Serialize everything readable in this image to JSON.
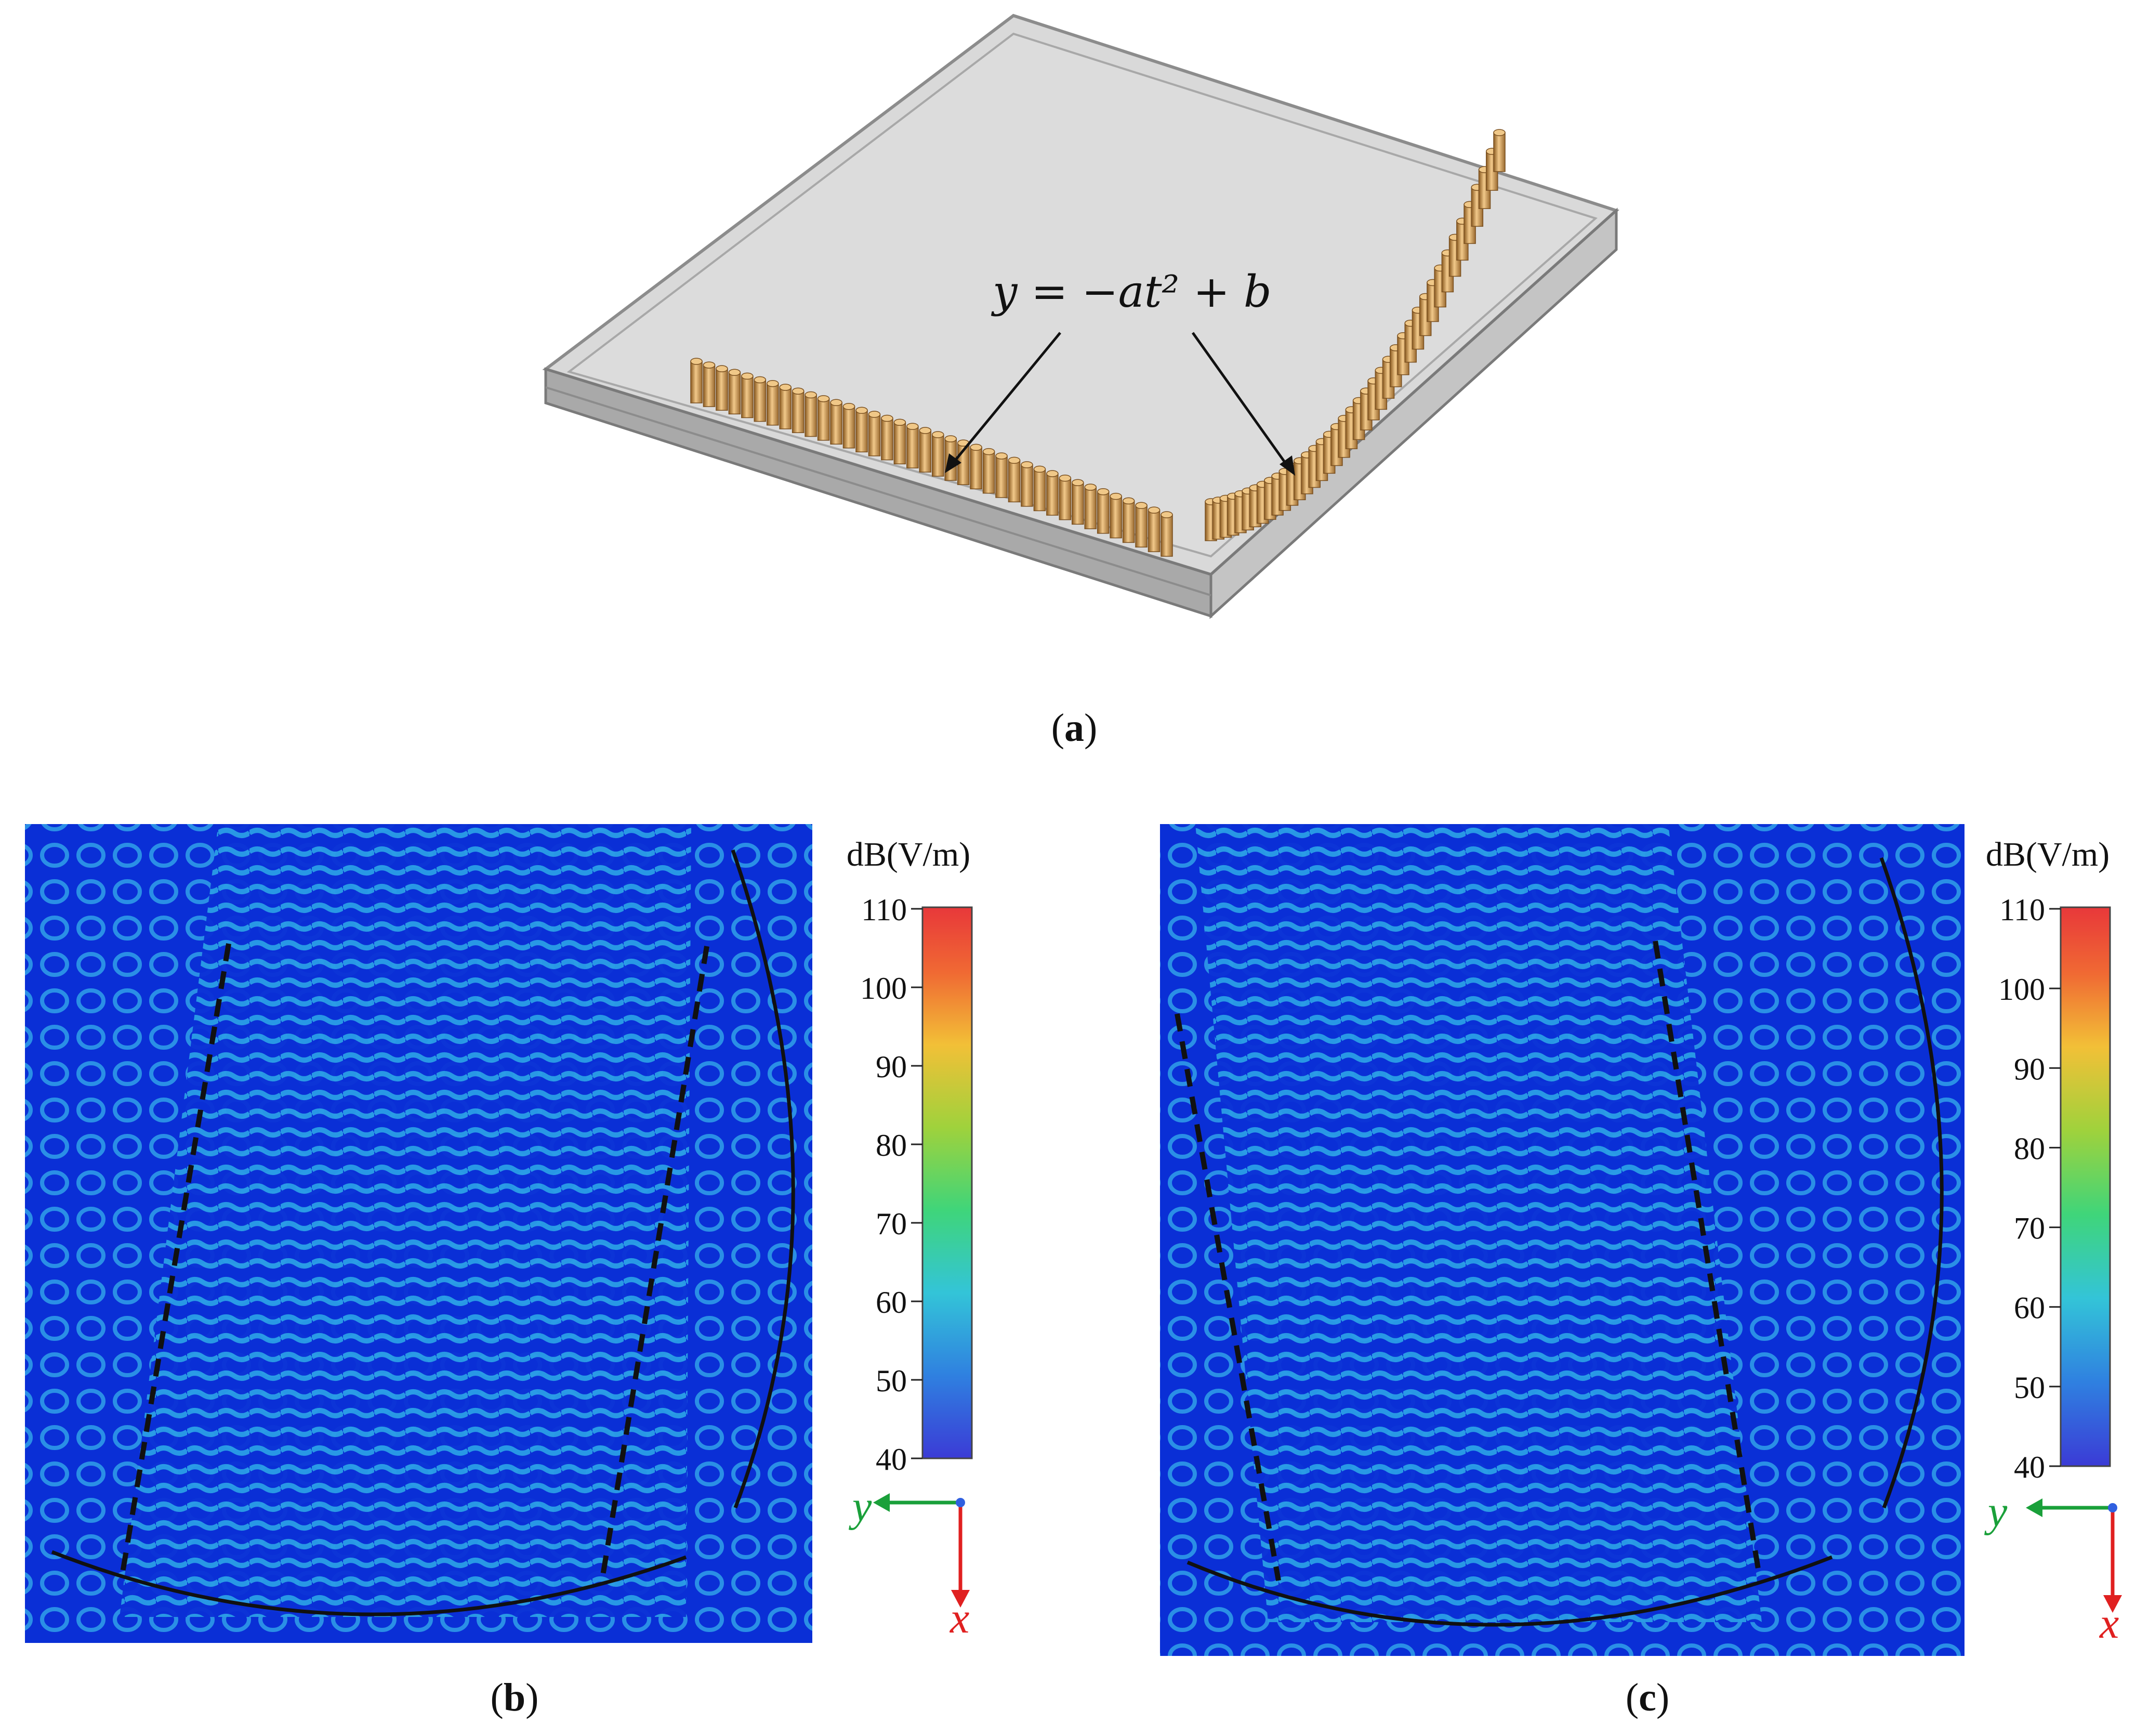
{
  "figure": {
    "panel_a": {
      "caption_letter": "a",
      "equation": "y = −at² + b"
    },
    "panel_b": {
      "caption_letter": "b",
      "colorbar_unit": "dB(V/m)",
      "colorbar_ticks": [
        "110",
        "100",
        "90",
        "80",
        "70",
        "60",
        "50",
        "40"
      ],
      "axis_y_label": "y",
      "axis_x_label": "x"
    },
    "panel_c": {
      "caption_letter": "c",
      "colorbar_unit": "dB(V/m)",
      "colorbar_ticks": [
        "110",
        "100",
        "90",
        "80",
        "70",
        "60",
        "50",
        "40"
      ],
      "axis_y_label": "y",
      "axis_x_label": "x"
    },
    "colors": {
      "field_background": "#0a2fd6",
      "field_wave": "#2a9de6",
      "colormap": [
        "#3b3bd6",
        "#2f80e0",
        "#33c4d8",
        "#3fd57a",
        "#9fd23c",
        "#f2c037",
        "#f06a33",
        "#e8383a"
      ],
      "axis_y_color": "#1aa03a",
      "axis_x_color": "#e02020",
      "pillar_color": "#d9a45a"
    }
  }
}
